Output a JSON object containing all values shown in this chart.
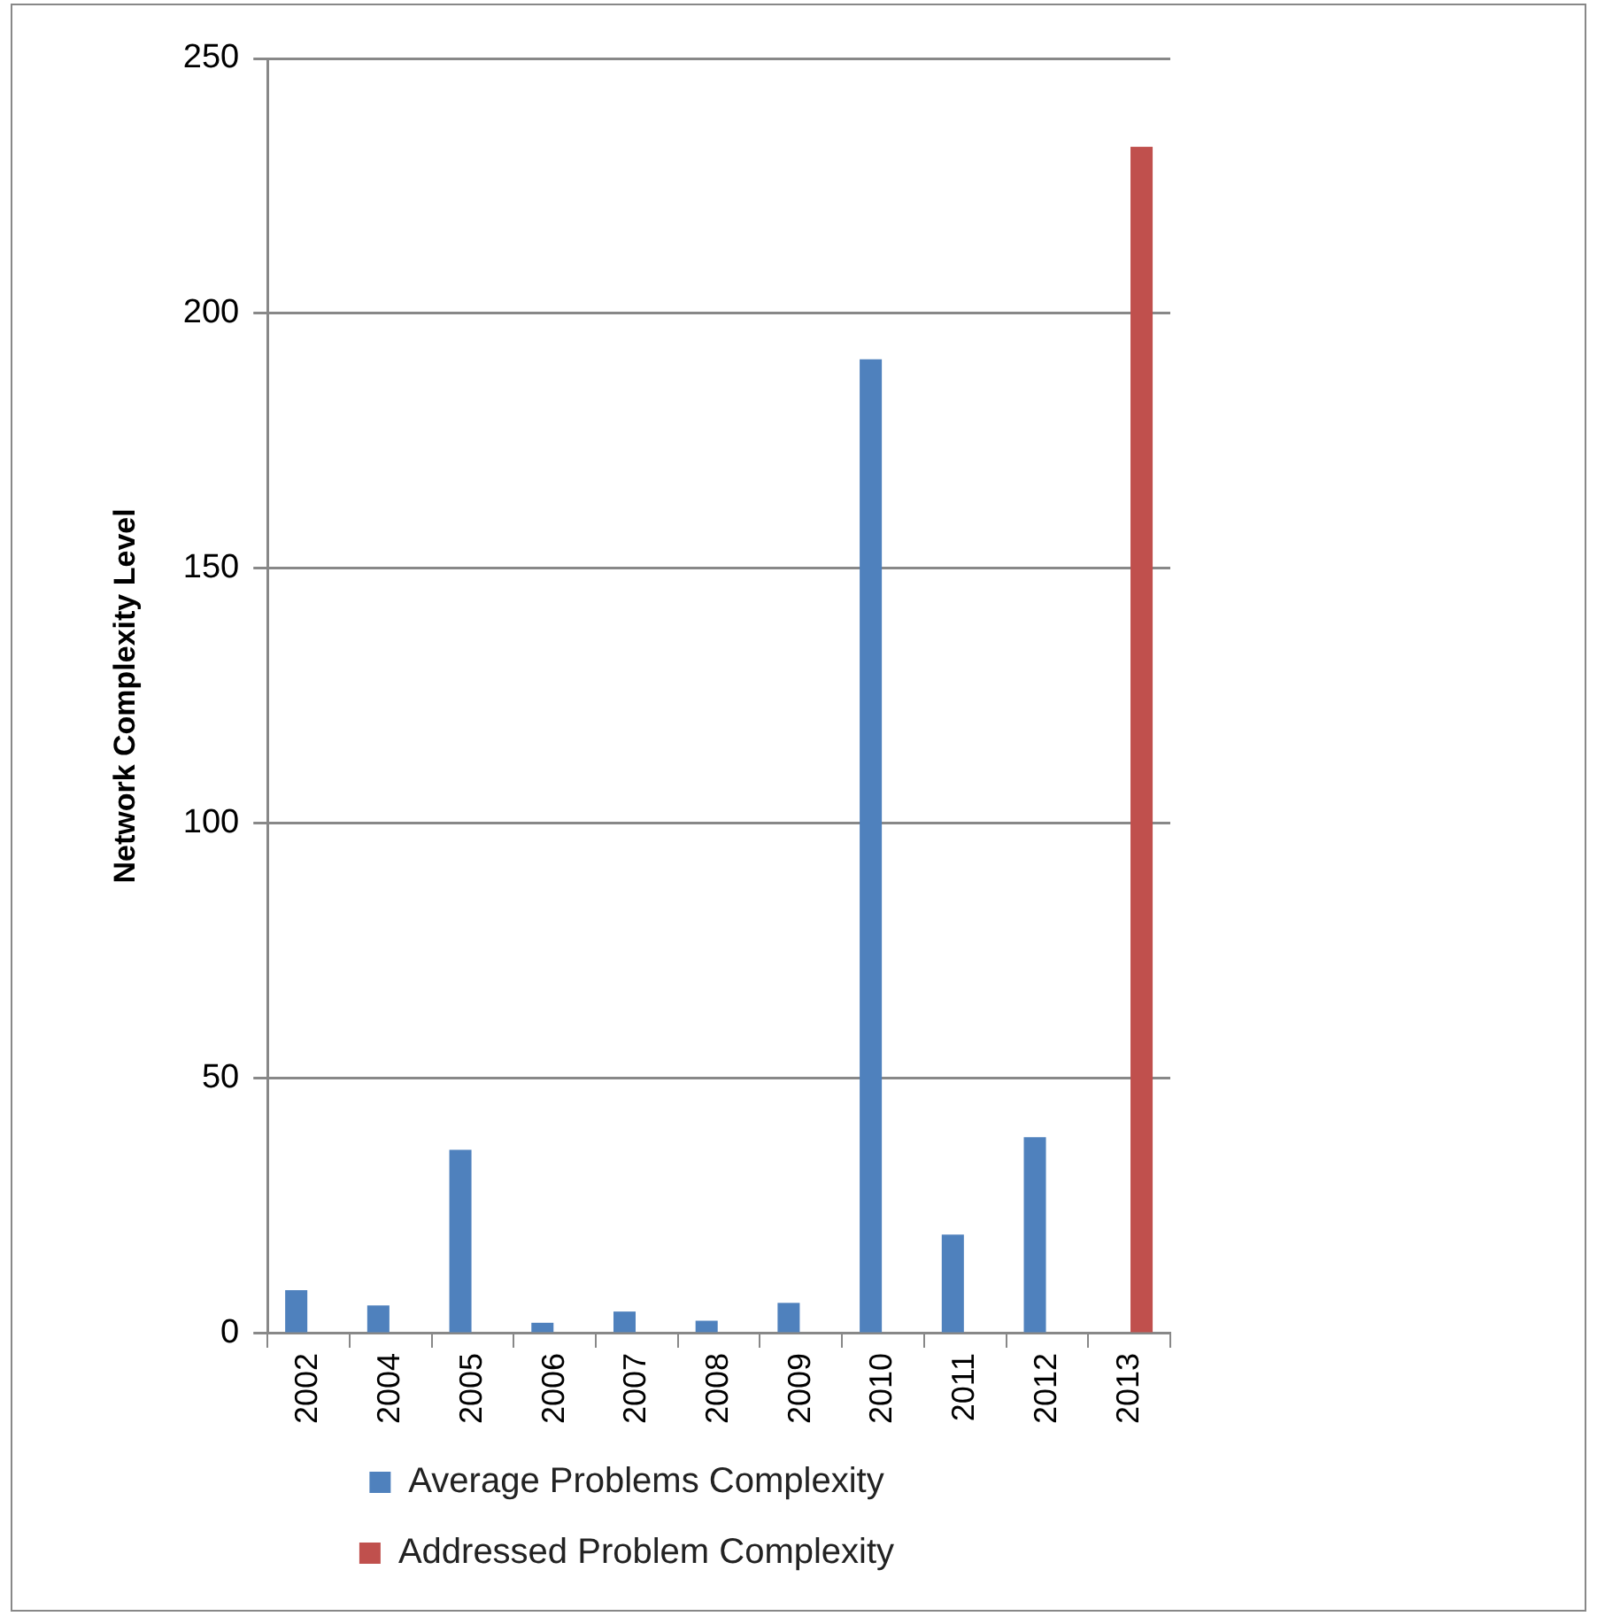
{
  "chart_data": {
    "type": "bar",
    "ylabel": "Network Complexity Level",
    "categories": [
      "2002",
      "2004",
      "2005",
      "2006",
      "2007",
      "2008",
      "2009",
      "2010",
      "2011",
      "2012",
      "2013"
    ],
    "series": [
      {
        "name": "Average Problems Complexity",
        "color": "#4f81bd",
        "values": [
          8.5,
          5.5,
          36,
          2.1,
          4.3,
          2.5,
          6.0,
          191,
          19.4,
          38.5,
          null
        ]
      },
      {
        "name": "Addressed Problem Complexity",
        "color": "#c0504d",
        "values": [
          null,
          null,
          null,
          null,
          null,
          null,
          null,
          null,
          null,
          null,
          232.7
        ]
      }
    ],
    "ylim": [
      0,
      250
    ],
    "yticks": [
      0,
      50,
      100,
      150,
      200,
      250
    ],
    "grid": "y",
    "legend": "bottom"
  }
}
